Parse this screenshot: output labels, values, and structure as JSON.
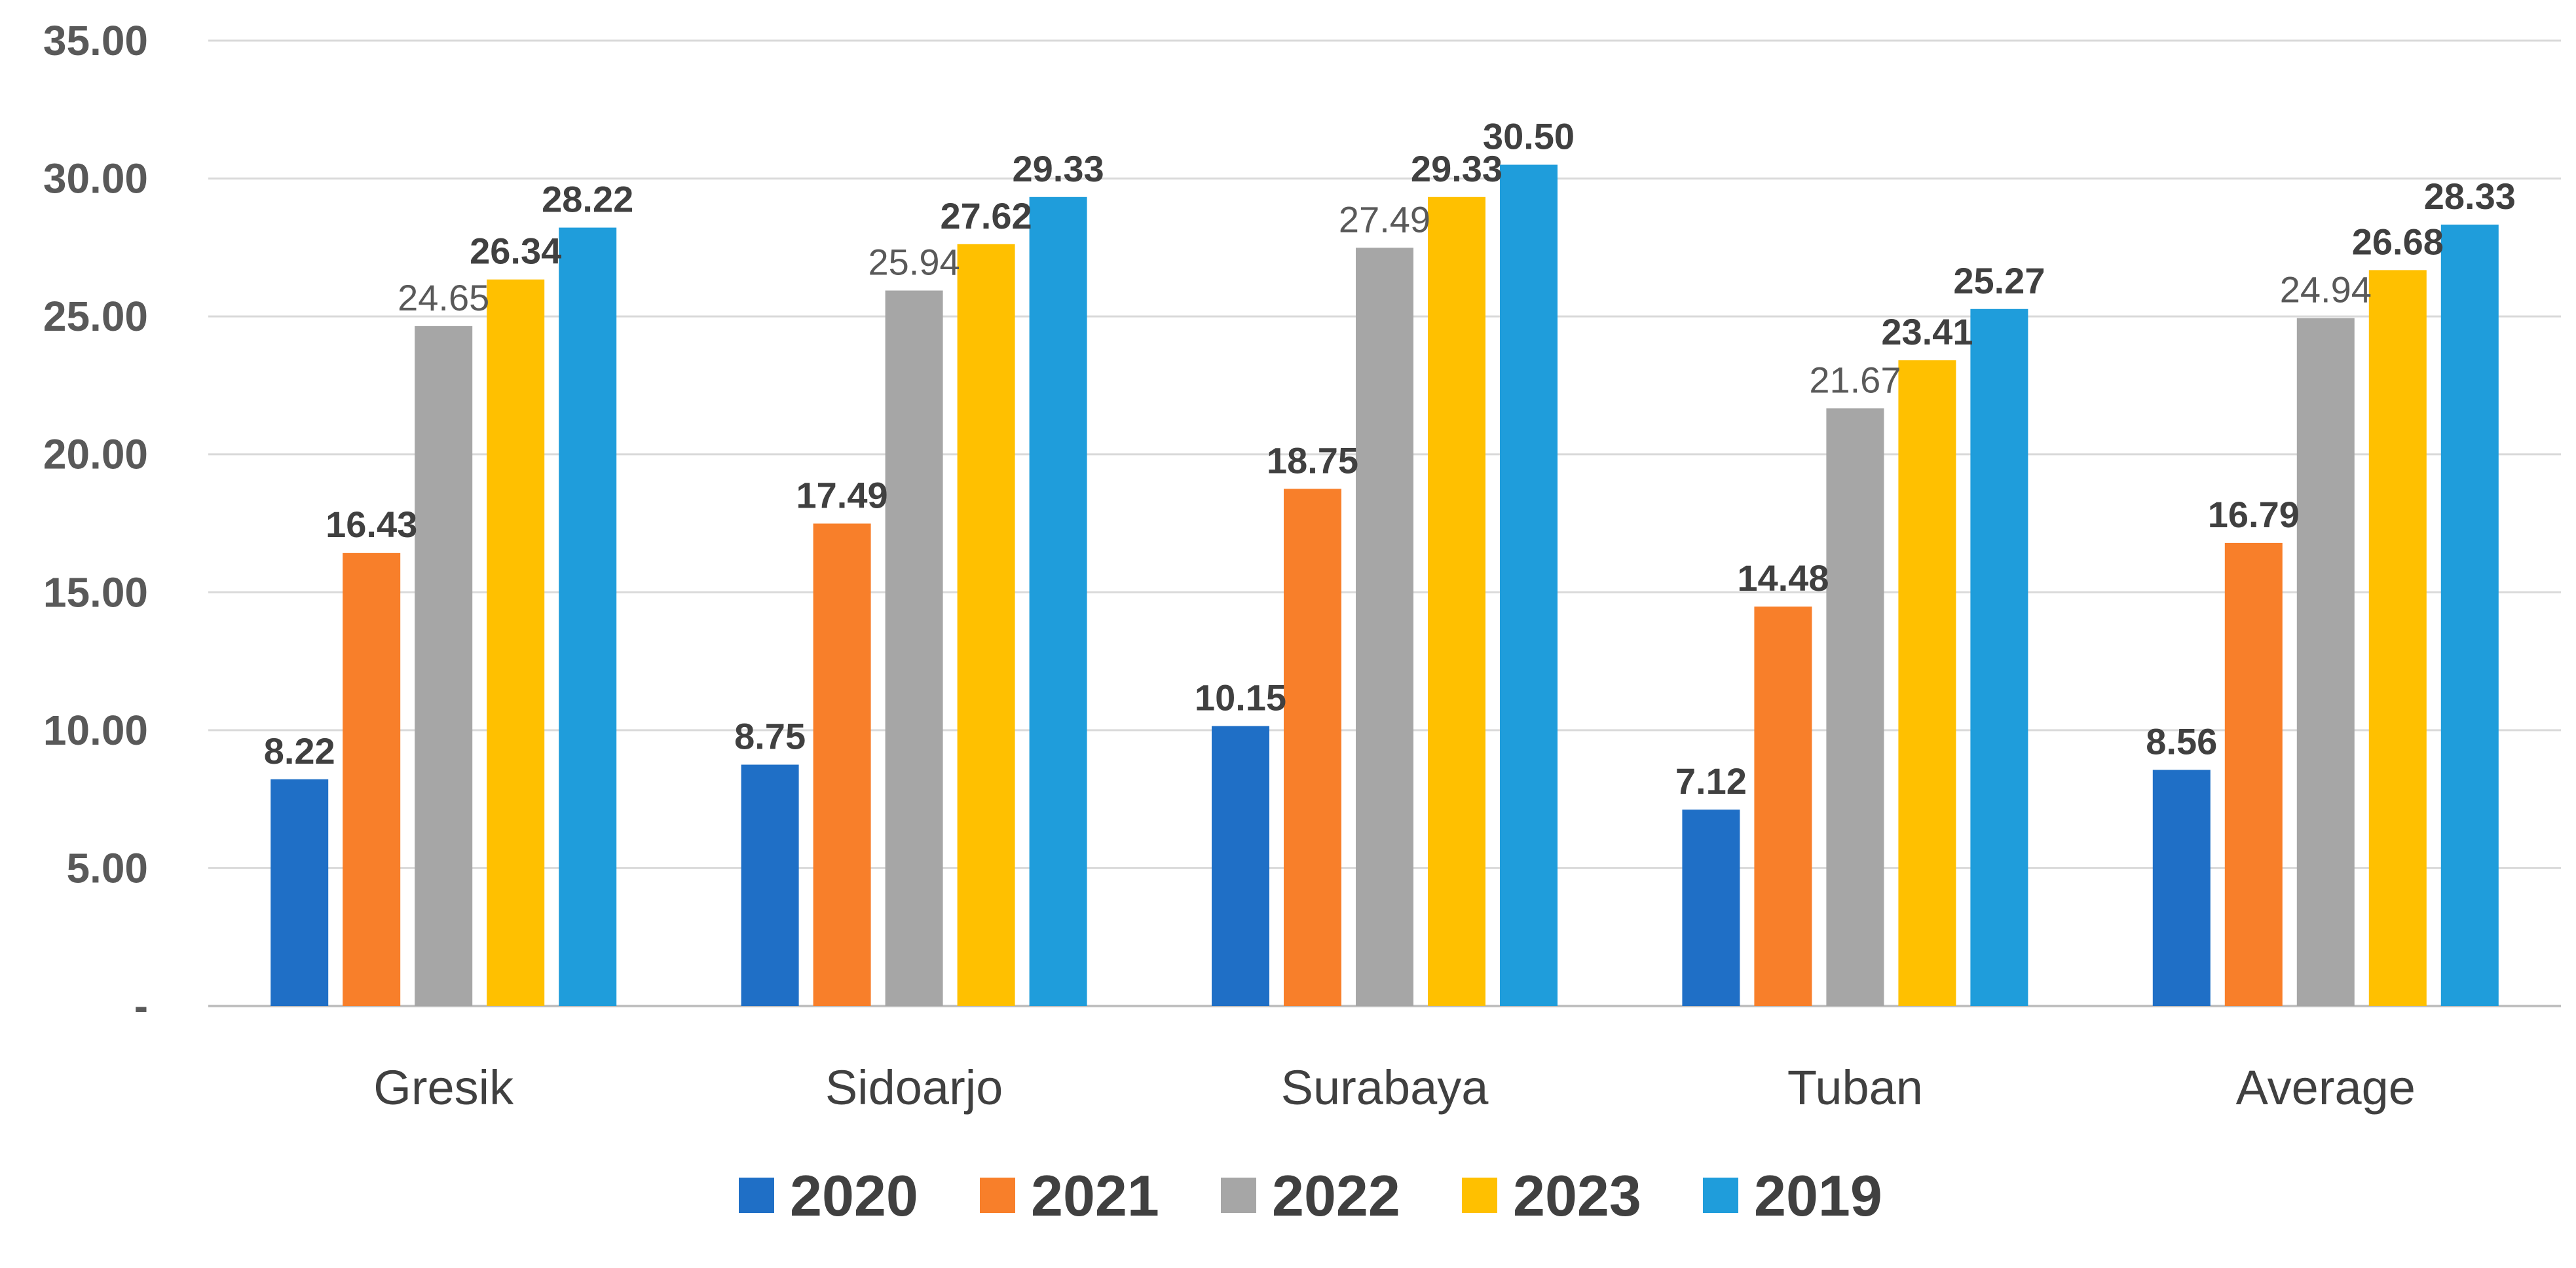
{
  "chart_data": {
    "type": "bar",
    "title": "",
    "xlabel": "",
    "ylabel": "",
    "ylim": [
      0,
      35
    ],
    "y_ticks": [
      "-",
      "5.00",
      "10.00",
      "15.00",
      "20.00",
      "25.00",
      "30.00",
      "35.00"
    ],
    "categories": [
      "Gresik",
      "Sidoarjo",
      "Surabaya",
      "Tuban",
      "Average"
    ],
    "series": [
      {
        "name": "2020",
        "color": "#1f6fc6",
        "values": [
          8.22,
          8.75,
          10.15,
          7.12,
          8.56
        ],
        "labels": [
          "8.22",
          "8.75",
          "10.15",
          "7.12",
          "8.56"
        ]
      },
      {
        "name": "2021",
        "color": "#f87f2a",
        "values": [
          16.43,
          17.49,
          18.75,
          14.48,
          16.79
        ],
        "labels": [
          "16.43",
          "17.49",
          "18.75",
          "14.48",
          "16.79"
        ]
      },
      {
        "name": "2022",
        "color": "#a6a6a6",
        "values": [
          24.65,
          25.94,
          27.49,
          21.67,
          24.94
        ],
        "labels": [
          "24.65",
          "25.94",
          "27.49",
          "21.67",
          "24.94"
        ]
      },
      {
        "name": "2023",
        "color": "#ffc000",
        "values": [
          26.34,
          27.62,
          29.33,
          23.41,
          26.68
        ],
        "labels": [
          "26.34",
          "27.62",
          "29.33",
          "23.41",
          "26.68"
        ]
      },
      {
        "name": "2019",
        "color": "#1f9ddb",
        "values": [
          28.22,
          29.33,
          30.5,
          25.27,
          28.33
        ],
        "labels": [
          "28.22",
          "29.33",
          "30.50",
          "25.27",
          "28.33"
        ]
      }
    ],
    "grid": true,
    "legend": "bottom"
  }
}
